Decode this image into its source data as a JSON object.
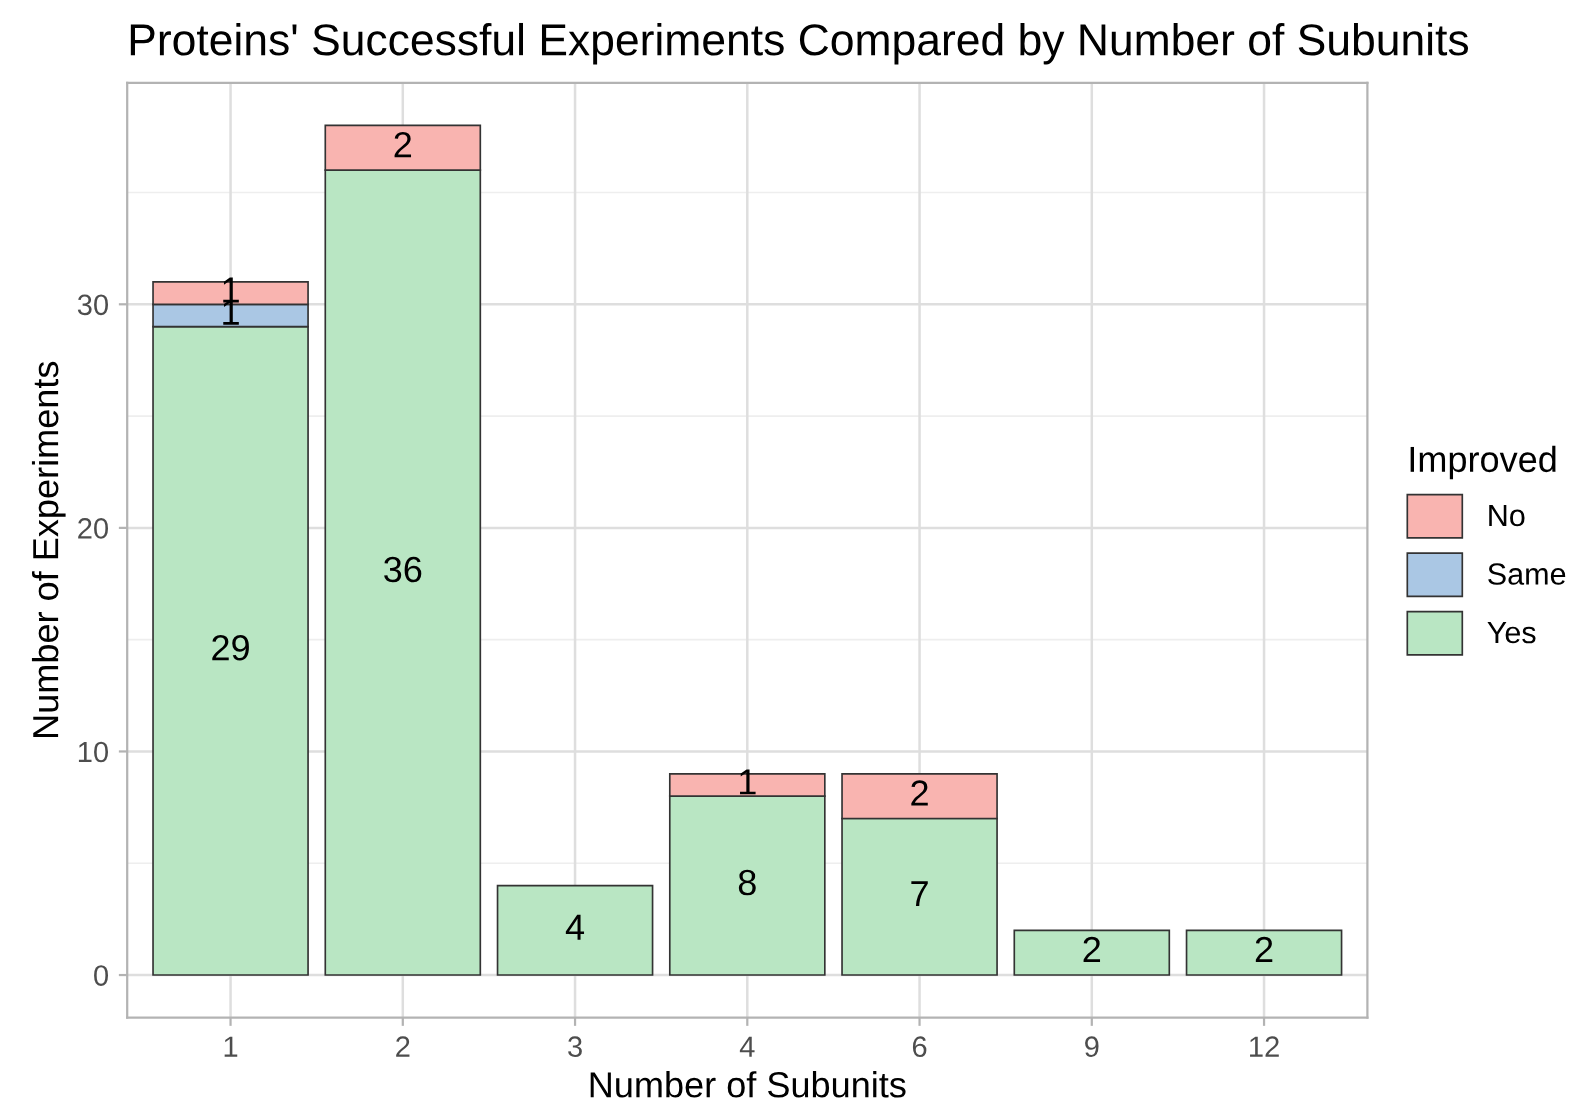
{
  "chart_data": {
    "type": "bar",
    "title": "Proteins' Successful Experiments Compared by Number of Subunits",
    "xlabel": "Number of Subunits",
    "ylabel": "Number of Experiments",
    "legend_title": "Improved",
    "categories": [
      "1",
      "2",
      "3",
      "4",
      "6",
      "9",
      "12"
    ],
    "stacked": true,
    "series": [
      {
        "name": "Yes",
        "color": "#b9e6c3",
        "values": [
          29,
          36,
          4,
          8,
          7,
          2,
          2
        ]
      },
      {
        "name": "Same",
        "color": "#aac7e4",
        "values": [
          1,
          null,
          null,
          null,
          null,
          null,
          null
        ]
      },
      {
        "name": "No",
        "color": "#f9b4b0",
        "values": [
          1,
          2,
          null,
          1,
          2,
          null,
          null
        ]
      }
    ],
    "ylim": [
      -1.9,
      39.9
    ],
    "yticks": [
      0,
      10,
      20,
      30
    ],
    "grid": true,
    "legend": "right",
    "data_labels": true
  }
}
